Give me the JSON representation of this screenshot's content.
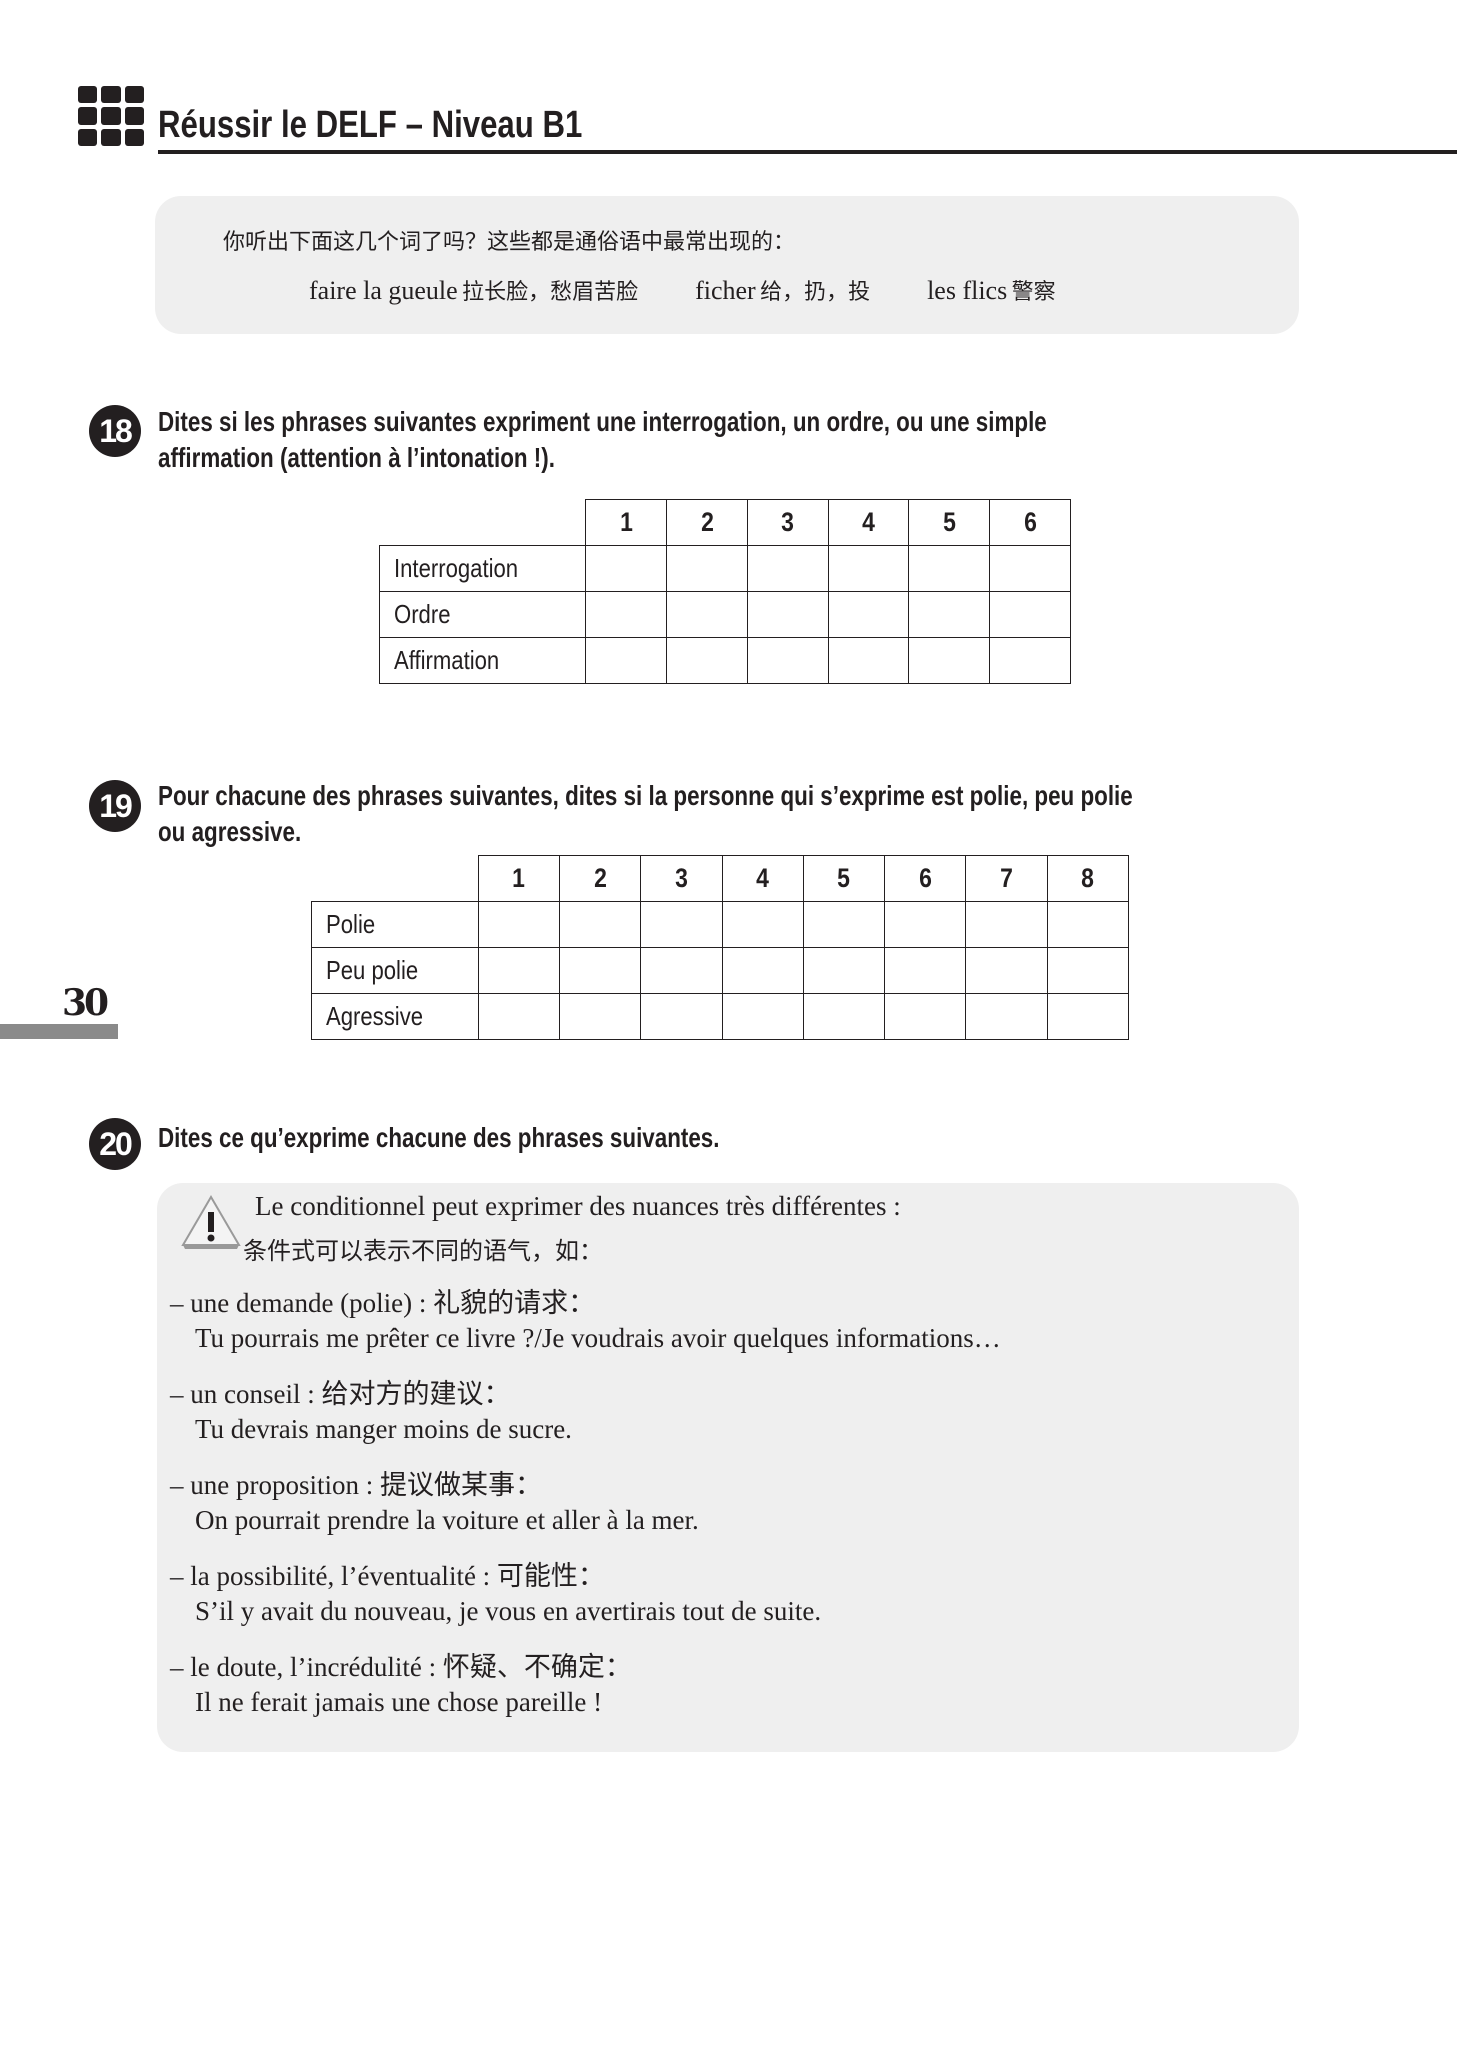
{
  "header": {
    "title": "Réussir le DELF – Niveau B1",
    "logo_icon": "grid-squares-icon"
  },
  "intro_box": {
    "question": "你听出下面这几个词了吗？这些都是通俗语中最常出现的：",
    "terms": [
      {
        "fr": "faire la gueule",
        "cn": "拉长脸，愁眉苦脸"
      },
      {
        "fr": "ficher",
        "cn": "给，扔，投"
      },
      {
        "fr": "les flics",
        "cn": "警察"
      }
    ]
  },
  "exercise18": {
    "number": "18",
    "instruction_1": "Dites si les phrases suivantes expriment une interrogation, un ordre, ou une simple",
    "instruction_2": "affirmation (attention à l’intonation !).",
    "columns": [
      "1",
      "2",
      "3",
      "4",
      "5",
      "6"
    ],
    "rows": [
      "Interrogation",
      "Ordre",
      "Affirmation"
    ]
  },
  "exercise19": {
    "number": "19",
    "instruction_1": "Pour chacune des phrases suivantes, dites si la personne qui s’exprime est polie, peu polie",
    "instruction_2": "ou agressive.",
    "columns": [
      "1",
      "2",
      "3",
      "4",
      "5",
      "6",
      "7",
      "8"
    ],
    "rows": [
      "Polie",
      "Peu polie",
      "Agressive"
    ]
  },
  "page_number": "30",
  "exercise20": {
    "number": "20",
    "instruction": "Dites ce qu’exprime chacune des phrases suivantes.",
    "note": {
      "icon": "warning-icon",
      "fr": "Le conditionnel peut exprimer des nuances très différentes :",
      "cn": "条件式可以表示不同的语气，如：",
      "items": [
        {
          "label": "une demande (polie) : 礼貌的请求：",
          "example": "Tu pourrais me prêter ce livre ?/Je voudrais avoir quelques informations…"
        },
        {
          "label": "un conseil : 给对方的建议：",
          "example": "Tu devrais manger moins de sucre."
        },
        {
          "label": "une proposition : 提议做某事：",
          "example": "On pourrait prendre la voiture et aller à la mer."
        },
        {
          "label": "la possibilité, l’éventualité : 可能性：",
          "example": "S’il y avait du nouveau, je vous en avertirais tout de suite."
        },
        {
          "label": "le doute, l’incrédulité : 怀疑、不确定：",
          "example": "Il ne ferait jamais une chose pareille !"
        }
      ]
    }
  }
}
